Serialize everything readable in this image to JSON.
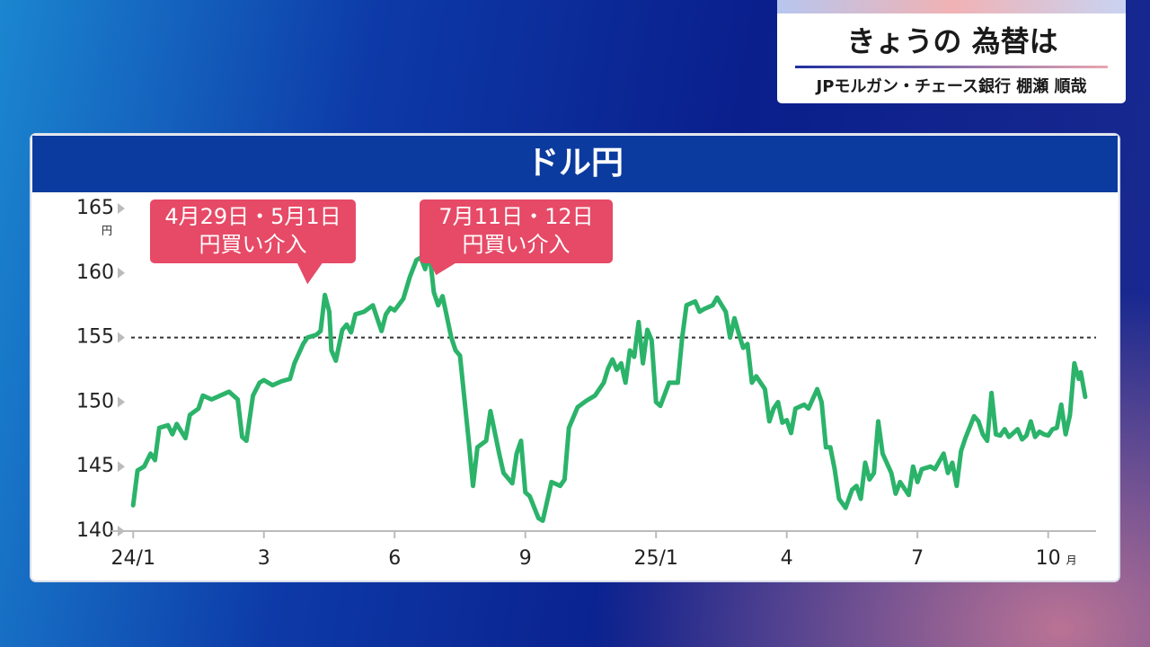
{
  "header": {
    "title": "きょうの 為替は",
    "subtitle": "JPモルガン・チェース銀行 棚瀬 順哉"
  },
  "chart_data": {
    "type": "line",
    "title": "ドル円",
    "y_unit": "円",
    "x_unit": "月",
    "color": "#2bb36a",
    "x": [
      0.0,
      0.1,
      0.25,
      0.4,
      0.5,
      0.6,
      0.8,
      0.9,
      1.0,
      1.2,
      1.3,
      1.5,
      1.6,
      1.8,
      2.0,
      2.2,
      2.4,
      2.5,
      2.6,
      2.75,
      2.9,
      3.0,
      3.2,
      3.4,
      3.6,
      3.7,
      3.9,
      4.0,
      4.2,
      4.3,
      4.4,
      4.5,
      4.55,
      4.65,
      4.8,
      4.9,
      5.0,
      5.1,
      5.3,
      5.5,
      5.6,
      5.7,
      5.8,
      5.9,
      6.0,
      6.2,
      6.35,
      6.5,
      6.6,
      6.7,
      6.8,
      6.9,
      7.0,
      7.1,
      7.3,
      7.4,
      7.5,
      7.7,
      7.8,
      7.9,
      8.1,
      8.2,
      8.4,
      8.5,
      8.7,
      8.8,
      8.9,
      9.0,
      9.1,
      9.3,
      9.4,
      9.6,
      9.8,
      9.9,
      10.0,
      10.2,
      10.4,
      10.6,
      10.8,
      10.9,
      11.0,
      11.1,
      11.2,
      11.3,
      11.4,
      11.5,
      11.6,
      11.7,
      11.8,
      11.9,
      12.0,
      12.1,
      12.3,
      12.5,
      12.6,
      12.7,
      12.9,
      13.0,
      13.1,
      13.3,
      13.4,
      13.6,
      13.7,
      13.8,
      13.9,
      14.0,
      14.1,
      14.2,
      14.3,
      14.5,
      14.6,
      14.7,
      14.8,
      14.9,
      15.0,
      15.1,
      15.2,
      15.4,
      15.5,
      15.7,
      15.8,
      15.9,
      16.0,
      16.1,
      16.2,
      16.35,
      16.5,
      16.6,
      16.7,
      16.8,
      16.9,
      17.0,
      17.1,
      17.2,
      17.4,
      17.5,
      17.6,
      17.8,
      17.9,
      18.0,
      18.1,
      18.3,
      18.4,
      18.6,
      18.7,
      18.8,
      18.9,
      19.0,
      19.1,
      19.3,
      19.4,
      19.5,
      19.6,
      19.7,
      19.8,
      19.9,
      20.0,
      20.1,
      20.3,
      20.4,
      20.5,
      20.6,
      20.7,
      20.8,
      20.9,
      21.0,
      21.1,
      21.2,
      21.3,
      21.4,
      21.5,
      21.6,
      21.7,
      21.75,
      21.85
    ],
    "values": [
      142,
      144.7,
      145,
      146,
      145.5,
      148,
      148.2,
      147.5,
      148.3,
      147.2,
      149,
      149.5,
      150.5,
      150.2,
      150.5,
      150.8,
      150.2,
      147.3,
      147,
      150.5,
      151.5,
      151.7,
      151.3,
      151.6,
      151.8,
      153,
      154.5,
      155,
      155.2,
      155.5,
      158.3,
      157,
      154,
      153.2,
      155.6,
      156,
      155.4,
      156.8,
      157,
      157.5,
      156.5,
      155.5,
      156.8,
      157.3,
      157.1,
      158,
      159.7,
      161,
      161.2,
      160.3,
      161.6,
      158.5,
      157.5,
      158.2,
      155,
      154,
      153.6,
      147,
      143.5,
      146.5,
      147,
      149.3,
      146,
      144.5,
      143.7,
      146,
      147,
      143,
      142.7,
      141,
      140.8,
      143.8,
      143.5,
      144,
      148,
      149.6,
      150.1,
      150.5,
      151.5,
      152.6,
      153.3,
      152.5,
      153,
      151.5,
      154,
      153.5,
      156.2,
      153,
      155.6,
      154.8,
      150,
      149.7,
      151.5,
      151.5,
      155,
      157.5,
      157.8,
      157,
      157.2,
      157.5,
      158.1,
      157,
      155,
      156.5,
      155.3,
      154.2,
      154.5,
      151.5,
      152,
      151,
      148.5,
      149.5,
      150,
      148.4,
      148.6,
      147.6,
      149.5,
      149.8,
      149.5,
      151,
      150,
      146.5,
      146.5,
      144.8,
      142.5,
      141.8,
      143.2,
      143.5,
      142.5,
      145.3,
      144,
      144.5,
      148.5,
      146,
      144.5,
      142.9,
      143.8,
      142.8,
      145,
      143.8,
      144.8,
      145,
      144.8,
      146,
      144.5,
      145.3,
      143.5,
      146.2,
      147.2,
      148.9,
      148.5,
      147.5,
      147,
      150.7,
      147.5,
      147.4,
      147.9,
      147.3,
      147.9,
      147.1,
      147.4,
      148.5,
      147.3,
      147.7,
      147.5,
      147.4,
      147.9,
      148,
      149.8,
      147.5,
      149,
      153,
      151.8,
      152.3,
      150.4
    ],
    "xlim": [
      -0.5,
      22.1
    ],
    "xticks": [
      {
        "value": 0,
        "label": "24/1"
      },
      3,
      6,
      9,
      {
        "value": 12,
        "label": "25/1"
      },
      {
        "value": 15,
        "label": "4"
      },
      {
        "value": 18,
        "label": "7"
      },
      {
        "value": 21,
        "label": "10"
      }
    ],
    "ylim": [
      140,
      165
    ],
    "yticks": [
      140,
      145,
      150,
      155,
      160,
      165
    ],
    "reference_line": 155,
    "grid": false,
    "annotations": [
      {
        "lines": [
          "4月29日・5月1日",
          "円買い介入"
        ],
        "x": 4.0,
        "y": 158.3
      },
      {
        "lines": [
          "7月11日・12日",
          "円買い介入"
        ],
        "x": 6.95,
        "y": 159
      }
    ]
  }
}
